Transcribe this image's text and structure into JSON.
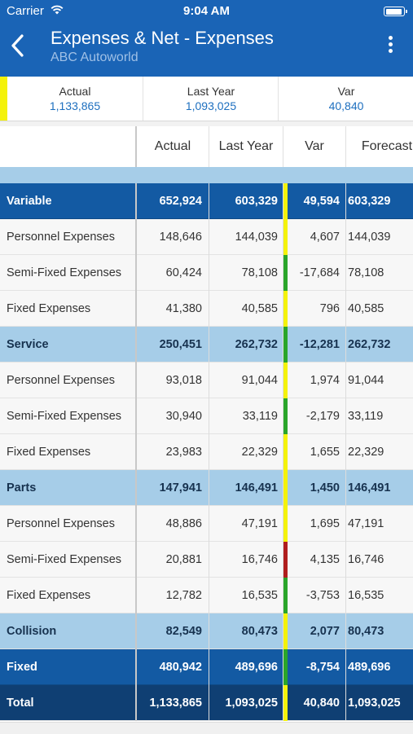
{
  "status_bar": {
    "carrier": "Carrier",
    "time": "9:04 AM"
  },
  "nav": {
    "title": "Expenses & Net - Expenses",
    "subtitle": "ABC Autoworld"
  },
  "summary": {
    "indicator_color": "#f4f20a",
    "items": [
      {
        "label": "Actual",
        "value": "1,133,865"
      },
      {
        "label": "Last Year",
        "value": "1,093,025"
      },
      {
        "label": "Var",
        "value": "40,840"
      }
    ]
  },
  "table": {
    "headers": [
      "Actual",
      "Last Year",
      "Var",
      "Forecast"
    ],
    "flag_colors": {
      "yellow": "#f4f20a",
      "green": "#2aa52a",
      "red": "#b01e1e"
    },
    "rows": [
      {
        "type": "group-dark",
        "label": "Variable",
        "actual": "652,924",
        "last_year": "603,329",
        "var": "49,594",
        "forecast": "603,329",
        "flag": "yellow"
      },
      {
        "type": "detail",
        "label": "Personnel Expenses",
        "actual": "148,646",
        "last_year": "144,039",
        "var": "4,607",
        "forecast": "144,039",
        "flag": "yellow"
      },
      {
        "type": "detail",
        "label": "Semi-Fixed Expenses",
        "actual": "60,424",
        "last_year": "78,108",
        "var": "-17,684",
        "forecast": "78,108",
        "flag": "green"
      },
      {
        "type": "detail",
        "label": "Fixed Expenses",
        "actual": "41,380",
        "last_year": "40,585",
        "var": "796",
        "forecast": "40,585",
        "flag": "yellow"
      },
      {
        "type": "group-light",
        "label": "Service",
        "actual": "250,451",
        "last_year": "262,732",
        "var": "-12,281",
        "forecast": "262,732",
        "flag": "green"
      },
      {
        "type": "detail",
        "label": "Personnel Expenses",
        "actual": "93,018",
        "last_year": "91,044",
        "var": "1,974",
        "forecast": "91,044",
        "flag": "yellow"
      },
      {
        "type": "detail",
        "label": "Semi-Fixed Expenses",
        "actual": "30,940",
        "last_year": "33,119",
        "var": "-2,179",
        "forecast": "33,119",
        "flag": "green"
      },
      {
        "type": "detail",
        "label": "Fixed Expenses",
        "actual": "23,983",
        "last_year": "22,329",
        "var": "1,655",
        "forecast": "22,329",
        "flag": "yellow"
      },
      {
        "type": "group-light",
        "label": "Parts",
        "actual": "147,941",
        "last_year": "146,491",
        "var": "1,450",
        "forecast": "146,491",
        "flag": "yellow"
      },
      {
        "type": "detail",
        "label": "Personnel Expenses",
        "actual": "48,886",
        "last_year": "47,191",
        "var": "1,695",
        "forecast": "47,191",
        "flag": "yellow"
      },
      {
        "type": "detail",
        "label": "Semi-Fixed Expenses",
        "actual": "20,881",
        "last_year": "16,746",
        "var": "4,135",
        "forecast": "16,746",
        "flag": "red"
      },
      {
        "type": "detail",
        "label": "Fixed Expenses",
        "actual": "12,782",
        "last_year": "16,535",
        "var": "-3,753",
        "forecast": "16,535",
        "flag": "green"
      },
      {
        "type": "group-light",
        "label": "Collision",
        "actual": "82,549",
        "last_year": "80,473",
        "var": "2,077",
        "forecast": "80,473",
        "flag": "yellow"
      },
      {
        "type": "group-dark",
        "label": "Fixed",
        "actual": "480,942",
        "last_year": "489,696",
        "var": "-8,754",
        "forecast": "489,696",
        "flag": "green"
      },
      {
        "type": "group-total",
        "label": "Total",
        "actual": "1,133,865",
        "last_year": "1,093,025",
        "var": "40,840",
        "forecast": "1,093,025",
        "flag": "yellow"
      }
    ]
  }
}
